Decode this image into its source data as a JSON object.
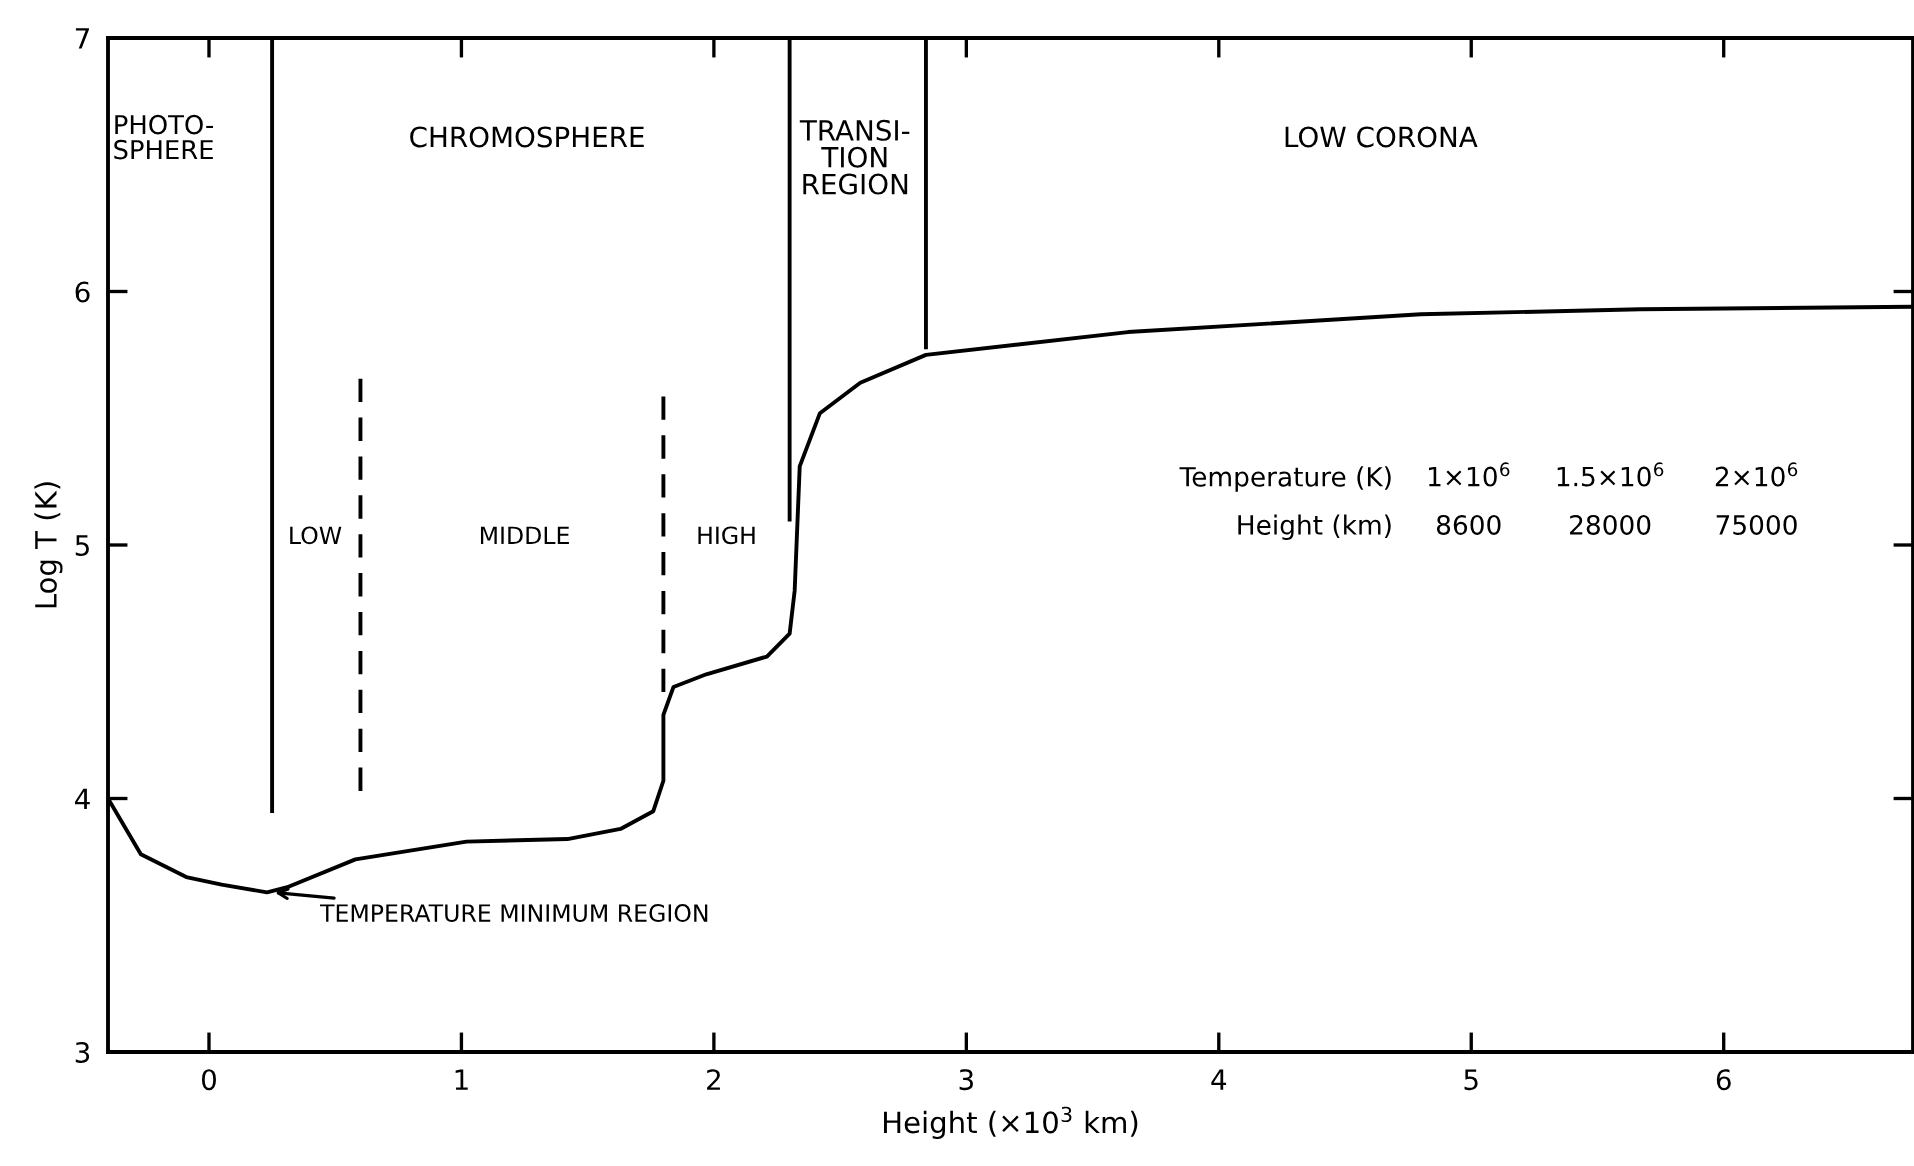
{
  "chart_data": {
    "type": "line",
    "xlabel": "Height (×10$^{3}$ km)",
    "ylabel": "Log T (K)",
    "xlim": [
      -0.4,
      6.75
    ],
    "ylim": [
      3,
      7
    ],
    "xticks": [
      0,
      1,
      2,
      3,
      4,
      5,
      6
    ],
    "yticks": [
      3,
      4,
      5,
      6,
      7
    ],
    "grid": false,
    "legend": false,
    "marker": "none",
    "series": [
      {
        "color": "#000000",
        "line_style": "solid",
        "x": [
          -0.4,
          -0.27,
          -0.09,
          0.05,
          0.23,
          0.31,
          0.58,
          1.02,
          1.42,
          1.63,
          1.76,
          1.8,
          1.8,
          1.84,
          1.97,
          2.21,
          2.3,
          2.32,
          2.34,
          2.42,
          2.58,
          2.84,
          3.64,
          4.8,
          5.67,
          6.74
        ],
        "values": [
          4.0,
          3.78,
          3.69,
          3.66,
          3.63,
          3.65,
          3.76,
          3.83,
          3.84,
          3.88,
          3.95,
          4.07,
          4.33,
          4.44,
          4.49,
          4.56,
          4.65,
          4.82,
          5.31,
          5.52,
          5.64,
          5.75,
          5.84,
          5.91,
          5.93,
          5.94
        ]
      },
      {
        "color": "#000000",
        "line_style": "solid",
        "x": [
          0.25,
          0.25
        ],
        "values": [
          3.95,
          7
        ]
      },
      {
        "color": "#000000",
        "line_style": "dashed",
        "x": [
          0.6,
          0.6
        ],
        "values": [
          4.03,
          5.67
        ]
      },
      {
        "color": "#000000",
        "line_style": "dashed",
        "x": [
          1.8,
          1.8
        ],
        "values": [
          4.42,
          5.6
        ]
      },
      {
        "color": "#000000",
        "line_style": "solid",
        "x": [
          2.3,
          2.3
        ],
        "values": [
          5.1,
          7
        ]
      },
      {
        "color": "#000000",
        "line_style": "solid",
        "x": [
          2.84,
          2.84
        ],
        "values": [
          5.78,
          7
        ]
      }
    ],
    "annotations": [
      "PHOTO-\nSPHERE",
      "CHROMOSPHERE",
      "TRANSI-\nTION\nREGION",
      "LOW CORONA",
      "LOW",
      "MIDDLE",
      "HIGH",
      {
        "text": "TEMPERATURE MINIMUM REGION",
        "x": 0.25,
        "y": 3.63
      },
      "Temperature (K)",
      "Height (km)",
      "1×10$^{6}$",
      "8600",
      "1.5×10$^{6}$",
      "28000",
      "2×10$^{6}$",
      "75000"
    ]
  }
}
